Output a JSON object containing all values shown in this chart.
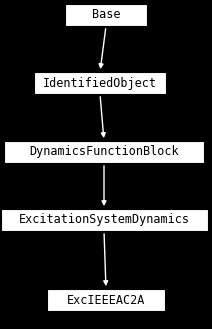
{
  "nodes": [
    "Base",
    "IdentifiedObject",
    "DynamicsFunctionBlock",
    "ExcitationSystemDynamics",
    "ExcIEEEAC2A"
  ],
  "background_color": "#000000",
  "box_facecolor": "#ffffff",
  "box_edgecolor": "#000000",
  "text_color": "#000000",
  "font_size": 8.5,
  "arrow_color": "#ffffff",
  "fig_width": 2.12,
  "fig_height": 3.29,
  "dpi": 100
}
